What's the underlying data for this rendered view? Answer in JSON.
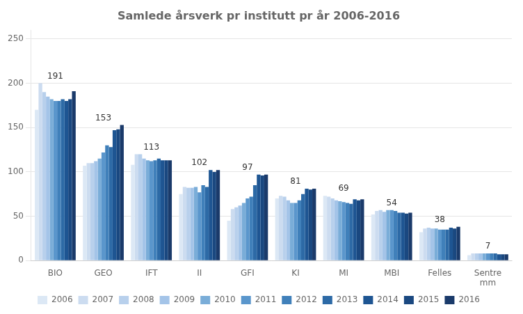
{
  "chart_data": {
    "type": "bar",
    "title": "Samlede årsverk pr institutt pr år 2006-2016",
    "categories": [
      "BIO",
      "GEO",
      "IFT",
      "II",
      "GFI",
      "KI",
      "MI",
      "MBI",
      "Felles",
      "Sentre\nmm"
    ],
    "series": [
      {
        "name": "2006",
        "color": "#dce8f5",
        "values": [
          170,
          107,
          108,
          75,
          45,
          70,
          73,
          52,
          32,
          6
        ]
      },
      {
        "name": "2007",
        "color": "#ccdcf0",
        "values": [
          200,
          110,
          120,
          83,
          58,
          73,
          72,
          56,
          36,
          8
        ]
      },
      {
        "name": "2008",
        "color": "#b8d0ec",
        "values": [
          190,
          110,
          120,
          82,
          60,
          72,
          70,
          57,
          37,
          8
        ]
      },
      {
        "name": "2009",
        "color": "#a4c4e8",
        "values": [
          185,
          112,
          115,
          82,
          62,
          68,
          68,
          55,
          36,
          8
        ]
      },
      {
        "name": "2010",
        "color": "#7aadd8",
        "values": [
          182,
          115,
          113,
          83,
          65,
          65,
          67,
          57,
          36,
          8
        ]
      },
      {
        "name": "2011",
        "color": "#5a96cc",
        "values": [
          180,
          122,
          112,
          77,
          70,
          65,
          66,
          57,
          35,
          8
        ]
      },
      {
        "name": "2012",
        "color": "#4080ba",
        "values": [
          180,
          130,
          113,
          85,
          72,
          68,
          65,
          56,
          35,
          8
        ]
      },
      {
        "name": "2013",
        "color": "#2d6aa6",
        "values": [
          182,
          128,
          115,
          83,
          85,
          75,
          64,
          54,
          35,
          8
        ]
      },
      {
        "name": "2014",
        "color": "#1e5592",
        "values": [
          180,
          147,
          113,
          102,
          97,
          81,
          69,
          54,
          37,
          7
        ]
      },
      {
        "name": "2015",
        "color": "#1a4880",
        "values": [
          182,
          148,
          113,
          100,
          96,
          80,
          68,
          53,
          36,
          7
        ]
      },
      {
        "name": "2016",
        "color": "#1a3a6a",
        "values": [
          191,
          153,
          113,
          102,
          97,
          81,
          69,
          54,
          38,
          7
        ]
      }
    ],
    "annotations": [
      {
        "category": "BIO",
        "value": 191
      },
      {
        "category": "GEO",
        "value": 153
      },
      {
        "category": "IFT",
        "value": 113
      },
      {
        "category": "II",
        "value": 102
      },
      {
        "category": "GFI",
        "value": 97
      },
      {
        "category": "KI",
        "value": 81
      },
      {
        "category": "MI",
        "value": 69
      },
      {
        "category": "MBI",
        "value": 54
      },
      {
        "category": "Felles",
        "value": 38
      },
      {
        "category": "Sentre\nmm",
        "value": 7
      }
    ],
    "ylim": [
      0,
      260
    ],
    "yticks": [
      0,
      50,
      100,
      150,
      200,
      250
    ],
    "grid": true,
    "legend": "bottom"
  }
}
